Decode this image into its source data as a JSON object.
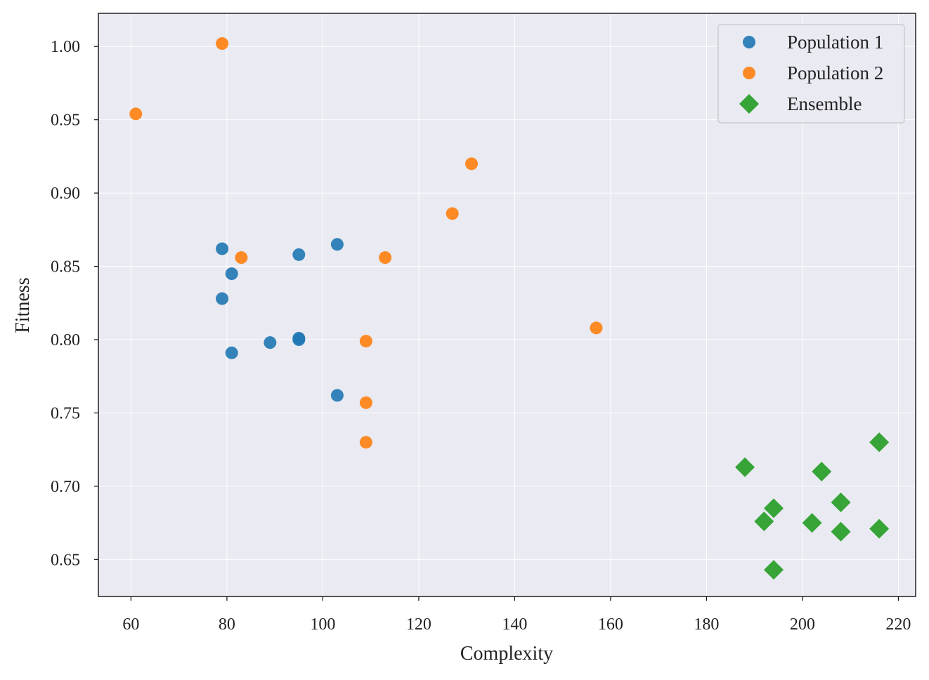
{
  "chart_data": {
    "type": "scatter",
    "title": "",
    "xlabel": "Complexity",
    "ylabel": "Fitness",
    "xlim": [
      53.2,
      223.6
    ],
    "ylim": [
      0.6248,
      1.0226
    ],
    "xticks": [
      60,
      80,
      100,
      120,
      140,
      160,
      180,
      200,
      220
    ],
    "xtick_labels": [
      "60",
      "80",
      "100",
      "120",
      "140",
      "160",
      "180",
      "200",
      "220"
    ],
    "yticks": [
      0.65,
      0.7,
      0.75,
      0.8,
      0.85,
      0.9,
      0.95,
      1.0
    ],
    "ytick_labels": [
      "0.65",
      "0.70",
      "0.75",
      "0.80",
      "0.85",
      "0.90",
      "0.95",
      "1.00"
    ],
    "grid": true,
    "legend_position": "top-right",
    "colors": {
      "plot_background": "#e9eaf2",
      "grid": "#ffffff"
    },
    "series": [
      {
        "name": "Population 1",
        "marker": "circle",
        "color": "#1f77b4",
        "points": [
          {
            "x": 79,
            "y": 0.862
          },
          {
            "x": 79,
            "y": 0.828
          },
          {
            "x": 81,
            "y": 0.845
          },
          {
            "x": 81,
            "y": 0.791
          },
          {
            "x": 89,
            "y": 0.798
          },
          {
            "x": 95,
            "y": 0.858
          },
          {
            "x": 95,
            "y": 0.801
          },
          {
            "x": 95,
            "y": 0.8
          },
          {
            "x": 103,
            "y": 0.865
          },
          {
            "x": 103,
            "y": 0.762
          }
        ]
      },
      {
        "name": "Population 2",
        "marker": "circle",
        "color": "#ff7f0e",
        "points": [
          {
            "x": 61,
            "y": 0.954
          },
          {
            "x": 79,
            "y": 1.002
          },
          {
            "x": 83,
            "y": 0.856
          },
          {
            "x": 109,
            "y": 0.799
          },
          {
            "x": 109,
            "y": 0.757
          },
          {
            "x": 109,
            "y": 0.73
          },
          {
            "x": 113,
            "y": 0.856
          },
          {
            "x": 127,
            "y": 0.886
          },
          {
            "x": 131,
            "y": 0.92
          },
          {
            "x": 157,
            "y": 0.808
          }
        ]
      },
      {
        "name": "Ensemble",
        "marker": "diamond",
        "color": "#2ca02c",
        "points": [
          {
            "x": 188,
            "y": 0.713
          },
          {
            "x": 192,
            "y": 0.676
          },
          {
            "x": 194,
            "y": 0.685
          },
          {
            "x": 194,
            "y": 0.643
          },
          {
            "x": 202,
            "y": 0.675
          },
          {
            "x": 204,
            "y": 0.71
          },
          {
            "x": 208,
            "y": 0.689
          },
          {
            "x": 208,
            "y": 0.669
          },
          {
            "x": 216,
            "y": 0.73
          },
          {
            "x": 216,
            "y": 0.671
          }
        ]
      }
    ]
  }
}
